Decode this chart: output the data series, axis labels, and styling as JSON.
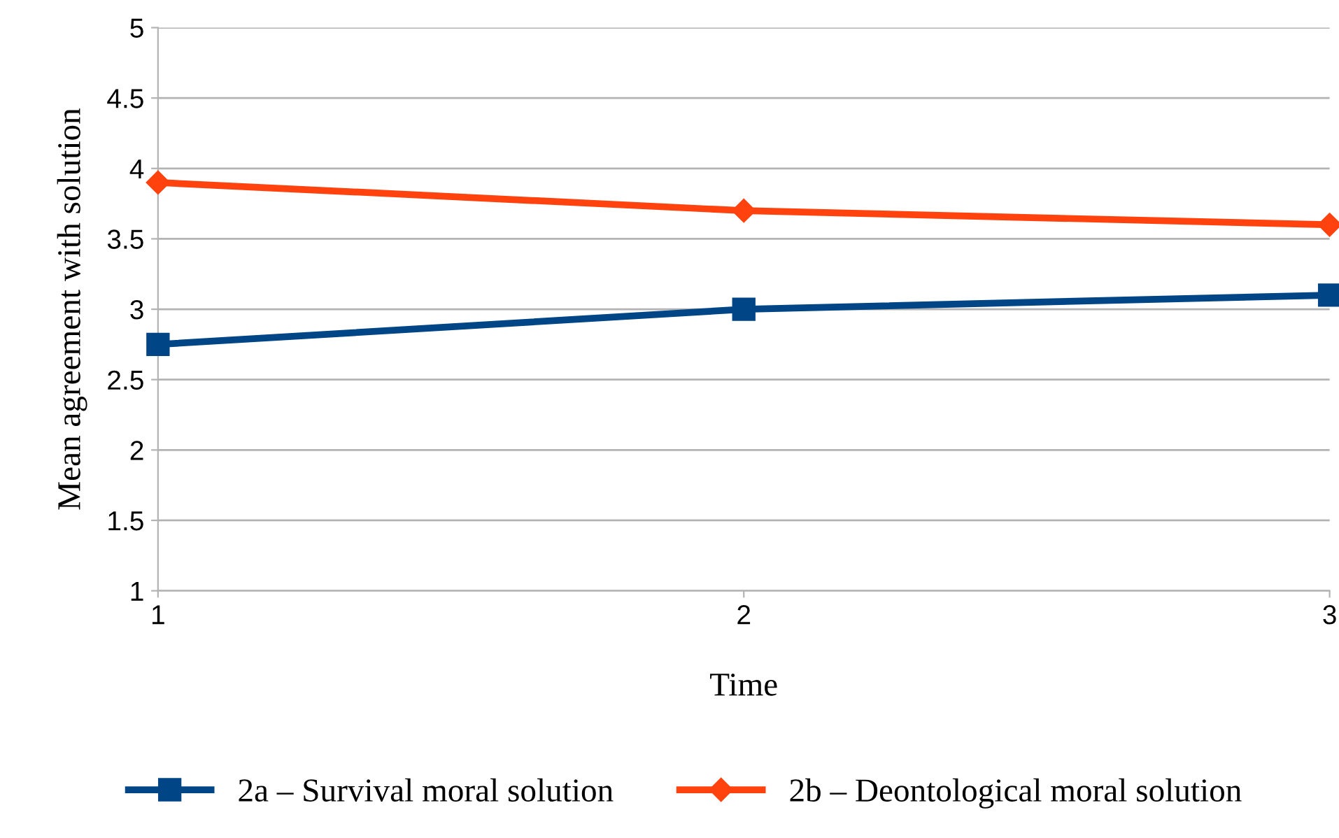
{
  "chart_data": {
    "type": "line",
    "xlabel": "Time",
    "ylabel": "Mean agreement with solution",
    "x": [
      1,
      2,
      3
    ],
    "series": [
      {
        "name": "2a – Survival moral solution",
        "color": "#004586",
        "marker": "square",
        "values": [
          2.75,
          3.0,
          3.1
        ]
      },
      {
        "name": "2b – Deontological moral solution",
        "color": "#ff420e",
        "marker": "diamond",
        "values": [
          3.9,
          3.7,
          3.6
        ]
      }
    ],
    "xlim": [
      1,
      3
    ],
    "xticks": [
      1,
      2,
      3
    ],
    "ylim": [
      1,
      5
    ],
    "yticks": [
      1,
      1.5,
      2,
      2.5,
      3,
      3.5,
      4,
      4.5,
      5
    ],
    "grid": "y",
    "legend": "bottom",
    "line_style": "solid"
  }
}
